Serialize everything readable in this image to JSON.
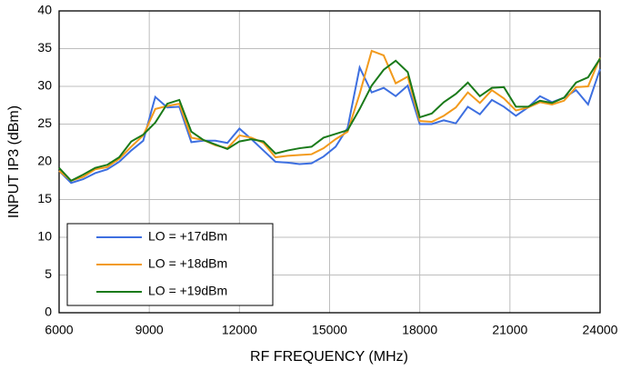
{
  "chart_data": {
    "type": "line",
    "xlabel": "RF FREQUENCY (MHz)",
    "ylabel": "INPUT IP3 (dBm)",
    "x": [
      6000,
      6400,
      6800,
      7200,
      7600,
      8000,
      8400,
      8800,
      9200,
      9600,
      10000,
      10400,
      10800,
      11200,
      11600,
      12000,
      12400,
      12800,
      13200,
      13600,
      14000,
      14400,
      14800,
      15200,
      15600,
      16000,
      16400,
      16800,
      17200,
      17600,
      18000,
      18400,
      18800,
      19200,
      19600,
      20000,
      20400,
      20800,
      21200,
      21600,
      22000,
      22400,
      22800,
      23200,
      23600,
      24000
    ],
    "series": [
      {
        "name": "LO = +17dBm",
        "color": "#3d6fe0",
        "values": [
          18.8,
          17.2,
          17.7,
          18.5,
          19,
          20,
          21.5,
          22.8,
          28.6,
          27.2,
          27.3,
          22.6,
          22.8,
          22.8,
          22.5,
          24.4,
          23,
          21.5,
          20,
          19.9,
          19.7,
          19.8,
          20.7,
          22,
          24.5,
          32.5,
          29.2,
          29.8,
          28.7,
          30.1,
          25,
          25,
          25.5,
          25.1,
          27.3,
          26.3,
          28.2,
          27.3,
          26.1,
          27.2,
          28.7,
          27.9,
          28.5,
          29.5,
          27.6,
          32.3
        ]
      },
      {
        "name": "LO = +18dBm",
        "color": "#f29a1c",
        "values": [
          18.8,
          17.5,
          18,
          19,
          19.3,
          20.4,
          22,
          23.5,
          27,
          27.4,
          27.7,
          23.2,
          22.9,
          22.2,
          21.8,
          23.5,
          23.2,
          22.5,
          20.6,
          20.8,
          20.9,
          21,
          21.8,
          23,
          24,
          29,
          34.7,
          34.1,
          30.4,
          31.3,
          25.4,
          25.3,
          26.1,
          27.2,
          29.2,
          27.8,
          29.5,
          28.4,
          26.8,
          27.2,
          27.9,
          27.6,
          28.1,
          29.9,
          30,
          33.8
        ]
      },
      {
        "name": "LO = +19dBm",
        "color": "#1a7a1a",
        "values": [
          19.2,
          17.5,
          18.3,
          19.2,
          19.6,
          20.6,
          22.7,
          23.6,
          25.2,
          27.7,
          28.2,
          24,
          22.9,
          22.3,
          21.7,
          22.7,
          23,
          22.7,
          21.1,
          21.5,
          21.8,
          22,
          23.2,
          23.7,
          24.2,
          27,
          30.1,
          32.2,
          33.4,
          31.9,
          25.9,
          26.4,
          27.9,
          29,
          30.5,
          28.7,
          29.8,
          29.9,
          27.3,
          27.3,
          28.1,
          27.8,
          28.5,
          30.5,
          31.2,
          33.7
        ]
      }
    ],
    "xlim": [
      6000,
      24000
    ],
    "xticks": [
      6000,
      9000,
      12000,
      15000,
      18000,
      21000,
      24000
    ],
    "ylim": [
      0,
      40
    ],
    "yticks": [
      0,
      5,
      10,
      15,
      20,
      25,
      30,
      35,
      40
    ],
    "grid": true,
    "legend": "lower left"
  }
}
